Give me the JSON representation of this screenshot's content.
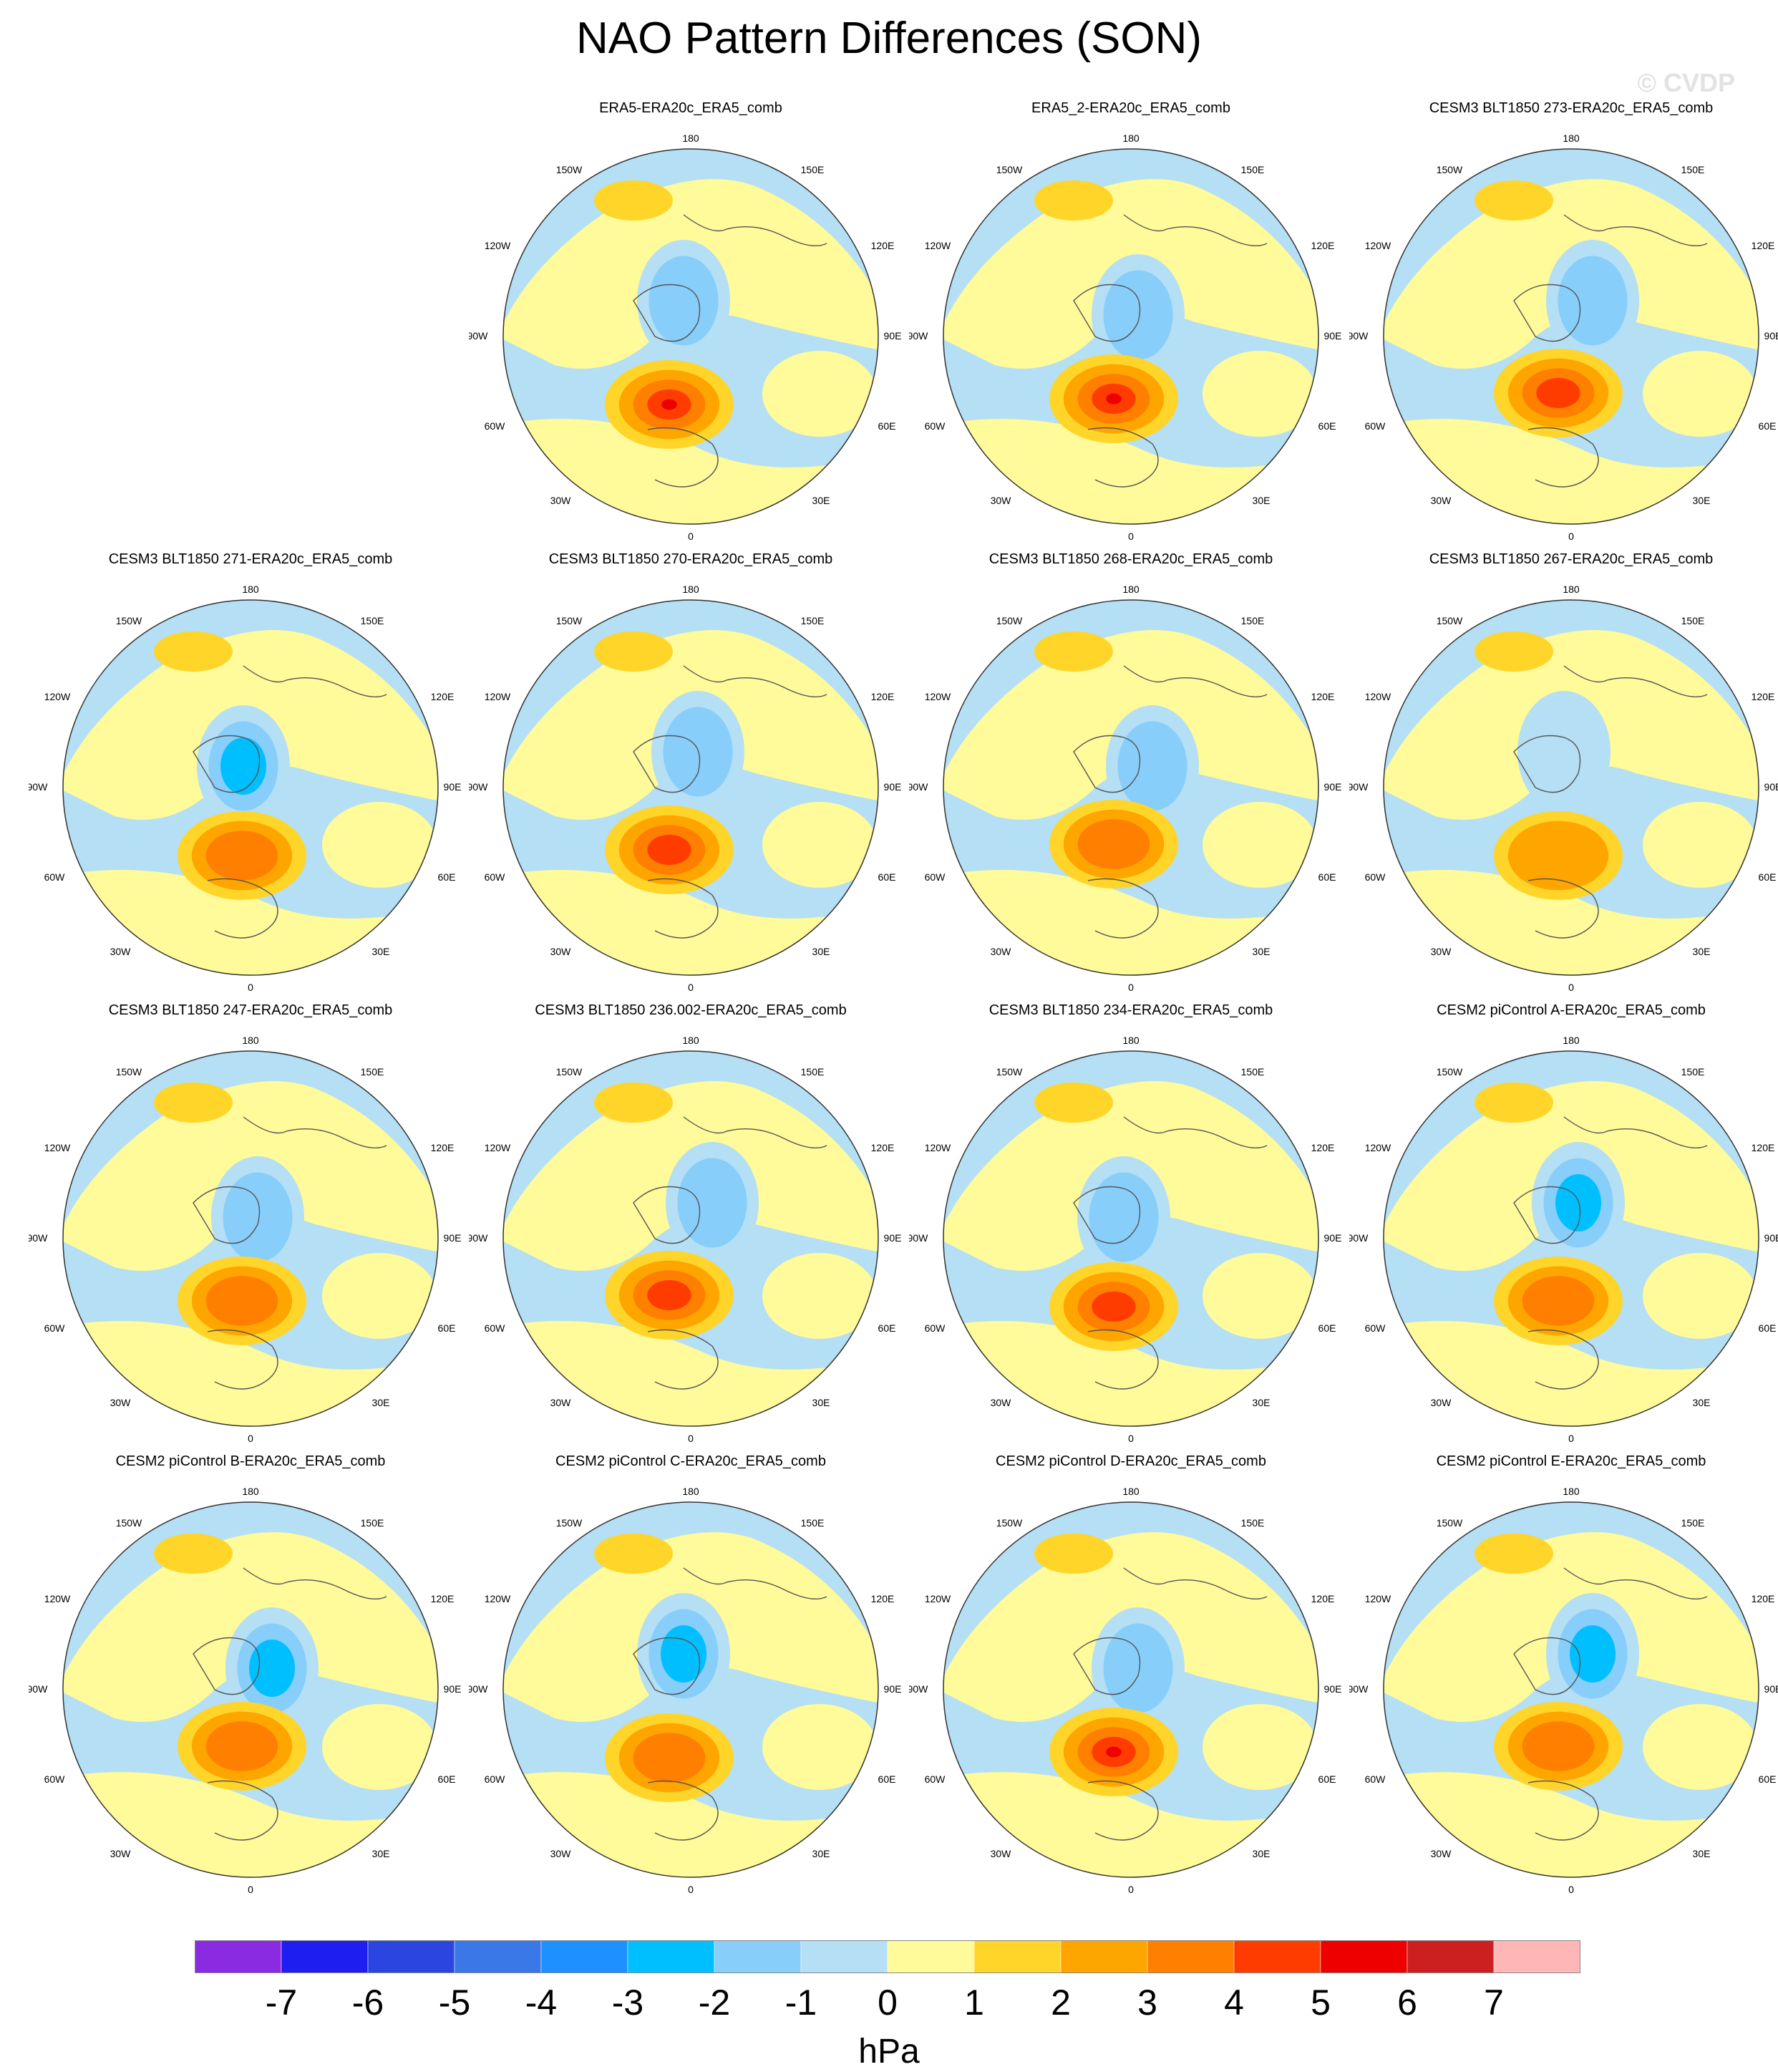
{
  "title": "NAO Pattern Differences (SON)",
  "watermark": "© CVDP",
  "units": "hPa",
  "longitude_labels": {
    "top": "180",
    "bottom": "0",
    "w150": "150W",
    "e150": "150E",
    "w120": "120W",
    "e120": "120E",
    "w90": "90W",
    "e90": "90E",
    "w60": "60W",
    "e60": "60E",
    "w30": "30W",
    "e30": "30E"
  },
  "colorbar": {
    "colors": [
      "#8a2be2",
      "#1e1ef0",
      "#2a45e0",
      "#3a78e8",
      "#1e90ff",
      "#00bfff",
      "#87cefa",
      "#b4dff4",
      "#fffa9a",
      "#ffd52a",
      "#ffa500",
      "#ff7f00",
      "#ff3c00",
      "#ee0000",
      "#cc1f1f",
      "#ffb6b6"
    ],
    "ticks": [
      "-7",
      "-6",
      "-5",
      "-4",
      "-3",
      "-2",
      "-1",
      "0",
      "1",
      "2",
      "3",
      "4",
      "5",
      "6",
      "7"
    ]
  },
  "panels": [
    {
      "title": "ERA5-ERA20c_ERA5_comb",
      "row": 0,
      "col": 1,
      "pos_max": 5,
      "neg_min": -2
    },
    {
      "title": "ERA5_2-ERA20c_ERA5_comb",
      "row": 0,
      "col": 2,
      "pos_max": 5,
      "neg_min": -2
    },
    {
      "title": "CESM3 BLT1850 273-ERA20c_ERA5_comb",
      "row": 0,
      "col": 3,
      "pos_max": 4,
      "neg_min": -2
    },
    {
      "title": "CESM3 BLT1850 271-ERA20c_ERA5_comb",
      "row": 1,
      "col": 0,
      "pos_max": 3,
      "neg_min": -3
    },
    {
      "title": "CESM3 BLT1850 270-ERA20c_ERA5_comb",
      "row": 1,
      "col": 1,
      "pos_max": 4,
      "neg_min": -2
    },
    {
      "title": "CESM3 BLT1850 268-ERA20c_ERA5_comb",
      "row": 1,
      "col": 2,
      "pos_max": 3,
      "neg_min": -2
    },
    {
      "title": "CESM3 BLT1850 267-ERA20c_ERA5_comb",
      "row": 1,
      "col": 3,
      "pos_max": 2,
      "neg_min": -1
    },
    {
      "title": "CESM3 BLT1850 247-ERA20c_ERA5_comb",
      "row": 2,
      "col": 0,
      "pos_max": 3,
      "neg_min": -2
    },
    {
      "title": "CESM3 BLT1850 236.002-ERA20c_ERA5_comb",
      "row": 2,
      "col": 1,
      "pos_max": 4,
      "neg_min": -2
    },
    {
      "title": "CESM3 BLT1850 234-ERA20c_ERA5_comb",
      "row": 2,
      "col": 2,
      "pos_max": 4,
      "neg_min": -2
    },
    {
      "title": "CESM2 piControl A-ERA20c_ERA5_comb",
      "row": 2,
      "col": 3,
      "pos_max": 3,
      "neg_min": -3
    },
    {
      "title": "CESM2 piControl B-ERA20c_ERA5_comb",
      "row": 3,
      "col": 0,
      "pos_max": 3,
      "neg_min": -3
    },
    {
      "title": "CESM2 piControl C-ERA20c_ERA5_comb",
      "row": 3,
      "col": 1,
      "pos_max": 3,
      "neg_min": -3
    },
    {
      "title": "CESM2 piControl D-ERA20c_ERA5_comb",
      "row": 3,
      "col": 2,
      "pos_max": 5,
      "neg_min": -2
    },
    {
      "title": "CESM2 piControl E-ERA20c_ERA5_comb",
      "row": 3,
      "col": 3,
      "pos_max": 3,
      "neg_min": -3
    }
  ]
}
